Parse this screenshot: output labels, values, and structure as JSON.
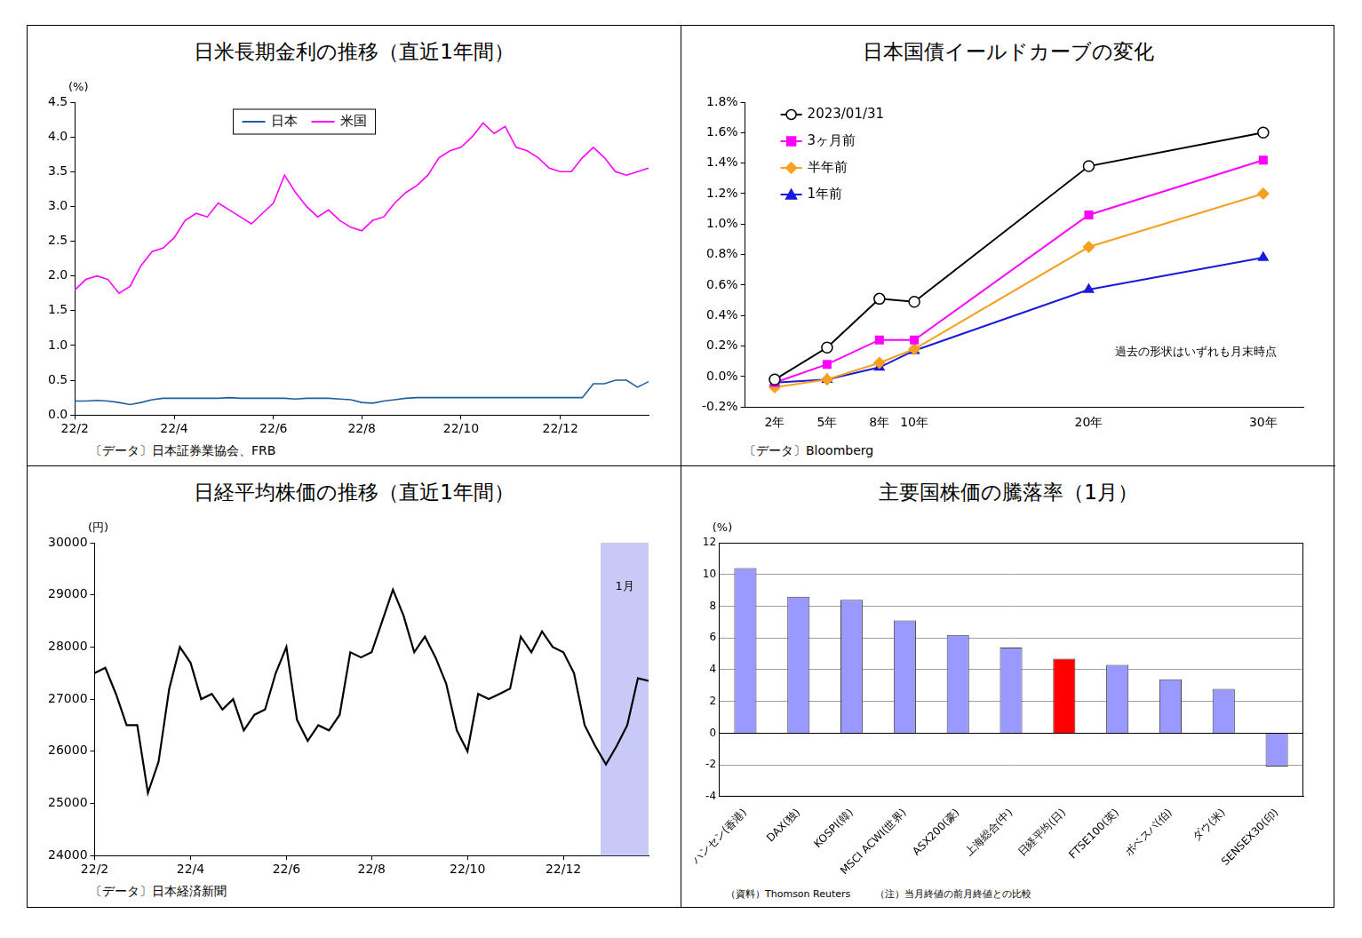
{
  "chart_data": [
    {
      "type": "line",
      "title": "日米長期金利の推移（直近1年間）",
      "ylabel": "(%)",
      "notes": [
        "〔データ〕日本証券業協会、FRB"
      ],
      "categories": [
        "22/2",
        null,
        null,
        null,
        null,
        null,
        null,
        null,
        null,
        "22/4",
        null,
        null,
        null,
        null,
        null,
        null,
        null,
        null,
        "22/6",
        null,
        null,
        null,
        null,
        null,
        null,
        null,
        "22/8",
        null,
        null,
        null,
        null,
        null,
        null,
        null,
        null,
        "22/10",
        null,
        null,
        null,
        null,
        null,
        null,
        null,
        null,
        "22/12",
        null,
        null,
        null,
        null,
        null,
        null,
        null,
        null
      ],
      "series": [
        {
          "name": "日本",
          "color": "#1f5fa0",
          "values": [
            0.2,
            0.2,
            0.21,
            0.2,
            0.18,
            0.15,
            0.18,
            0.22,
            0.24,
            0.24,
            0.24,
            0.24,
            0.24,
            0.24,
            0.25,
            0.24,
            0.24,
            0.24,
            0.24,
            0.24,
            0.23,
            0.24,
            0.24,
            0.24,
            0.23,
            0.22,
            0.18,
            0.17,
            0.2,
            0.22,
            0.24,
            0.25,
            0.25,
            0.25,
            0.25,
            0.25,
            0.25,
            0.25,
            0.25,
            0.25,
            0.25,
            0.25,
            0.25,
            0.25,
            0.25,
            0.25,
            0.25,
            0.45,
            0.45,
            0.5,
            0.5,
            0.4,
            0.48
          ]
        },
        {
          "name": "米国",
          "color": "#ff00ff",
          "values": [
            1.8,
            1.95,
            2.0,
            1.95,
            1.75,
            1.85,
            2.15,
            2.35,
            2.4,
            2.55,
            2.8,
            2.9,
            2.85,
            3.05,
            2.95,
            2.85,
            2.75,
            2.9,
            3.05,
            3.45,
            3.2,
            3.0,
            2.85,
            2.95,
            2.8,
            2.7,
            2.65,
            2.8,
            2.85,
            3.05,
            3.2,
            3.3,
            3.45,
            3.7,
            3.8,
            3.85,
            4.0,
            4.2,
            4.05,
            4.15,
            3.85,
            3.8,
            3.7,
            3.55,
            3.5,
            3.5,
            3.7,
            3.85,
            3.7,
            3.5,
            3.45,
            3.5,
            3.55
          ]
        }
      ],
      "ylim": [
        0,
        4.5
      ],
      "yticks": [
        {
          "value": 0,
          "label": "0.0"
        },
        0.5,
        {
          "value": 1,
          "label": "1.0"
        },
        1.5,
        {
          "value": 2,
          "label": "2.0"
        },
        2.5,
        {
          "value": 3,
          "label": "3.0"
        },
        3.5,
        {
          "value": 4,
          "label": "4.0"
        },
        4.5
      ],
      "grid": false,
      "legend": "upper center"
    },
    {
      "type": "line",
      "title": "日本国債イールドカーブの変化",
      "notes": [
        "〔データ〕Bloomberg"
      ],
      "annotations": [
        {
          "text": "過去の形状はいずれも月末時点"
        }
      ],
      "x": [
        2,
        5,
        8,
        10,
        20,
        30
      ],
      "xlim": [
        0.3,
        32.3
      ],
      "xticks": [
        {
          "value": 2,
          "label": "2年"
        },
        {
          "value": 5,
          "label": "5年"
        },
        {
          "value": 8,
          "label": "8年"
        },
        {
          "value": 10,
          "label": "10年"
        },
        {
          "value": 20,
          "label": "20年"
        },
        {
          "value": 30,
          "label": "30年"
        }
      ],
      "series": [
        {
          "name": "2023/01/31",
          "color": "#000000",
          "marker": "circle_open",
          "values": [
            -0.02,
            0.19,
            0.51,
            0.49,
            1.38,
            1.6
          ]
        },
        {
          "name": "3ヶ月前",
          "color": "#ff00ff",
          "marker": "square",
          "values": [
            -0.04,
            0.08,
            0.24,
            0.24,
            1.06,
            1.42
          ]
        },
        {
          "name": "半年前",
          "color": "#f5a020",
          "marker": "diamond",
          "values": [
            -0.07,
            -0.02,
            0.09,
            0.18,
            0.85,
            1.2
          ]
        },
        {
          "name": "1年前",
          "color": "#1a1adc",
          "marker": "triangle",
          "values": [
            -0.04,
            -0.02,
            0.06,
            0.17,
            0.57,
            0.78
          ]
        }
      ],
      "ylim": [
        -0.2,
        1.8
      ],
      "yticks": [
        {
          "value": -0.2,
          "label": "-0.2%"
        },
        {
          "value": 0,
          "label": "0.0%"
        },
        {
          "value": 0.2,
          "label": "0.2%"
        },
        {
          "value": 0.4,
          "label": "0.4%"
        },
        {
          "value": 0.6,
          "label": "0.6%"
        },
        {
          "value": 0.8,
          "label": "0.8%"
        },
        {
          "value": 1.0,
          "label": "1.0%"
        },
        {
          "value": 1.2,
          "label": "1.2%"
        },
        {
          "value": 1.4,
          "label": "1.4%"
        },
        {
          "value": 1.6,
          "label": "1.6%"
        },
        {
          "value": 1.8,
          "label": "1.8%"
        }
      ],
      "grid": false,
      "legend": "upper left"
    },
    {
      "type": "line",
      "title": "日経平均株価の推移（直近1年間）",
      "ylabel": "(円)",
      "notes": [
        "〔データ〕日本経済新聞"
      ],
      "annotations": [
        {
          "text": "1月",
          "from": 48,
          "to": 52
        }
      ],
      "categories": [
        "22/2",
        null,
        null,
        null,
        null,
        null,
        null,
        null,
        null,
        "22/4",
        null,
        null,
        null,
        null,
        null,
        null,
        null,
        null,
        "22/6",
        null,
        null,
        null,
        null,
        null,
        null,
        null,
        "22/8",
        null,
        null,
        null,
        null,
        null,
        null,
        null,
        null,
        "22/10",
        null,
        null,
        null,
        null,
        null,
        null,
        null,
        null,
        "22/12",
        null,
        null,
        null,
        null,
        null,
        null,
        null,
        null
      ],
      "color": "#000000",
      "values": [
        27500,
        27600,
        27100,
        26500,
        26500,
        25200,
        25800,
        27200,
        28000,
        27700,
        27000,
        27100,
        26800,
        27000,
        26400,
        26700,
        26800,
        27500,
        28000,
        26600,
        26200,
        26500,
        26400,
        26700,
        27900,
        27800,
        27900,
        28500,
        29100,
        28600,
        27900,
        28200,
        27800,
        27300,
        26400,
        26000,
        27100,
        27000,
        27100,
        27200,
        28200,
        27900,
        28300,
        28000,
        27900,
        27500,
        26500,
        26100,
        25750,
        26100,
        26500,
        27400,
        27350
      ],
      "ylim": [
        24000,
        30000
      ],
      "yticks": [
        24000,
        25000,
        26000,
        27000,
        28000,
        29000,
        30000
      ],
      "grid": false
    },
    {
      "type": "bar",
      "title": "主要国株価の騰落率（1月）",
      "ylabel": "(%)",
      "notes": [
        "（資料）Thomson Reuters",
        "（注）当月終値の前月終値との比較"
      ],
      "categories": [
        "ハンセン(香港)",
        "DAX(独)",
        "KOSPI(韓)",
        "MSCI ACWI(世界)",
        "ASX200(豪)",
        "上海総合(中)",
        "日経平均(日)",
        "FTSE100(英)",
        "ボベスパ(伯)",
        "ダウ(米)",
        "SENSEX30(印)"
      ],
      "values": [
        10.4,
        8.6,
        8.4,
        7.1,
        6.2,
        5.4,
        4.7,
        4.3,
        3.4,
        2.8,
        -2.1
      ],
      "colors": [
        "#9999ff",
        "#9999ff",
        "#9999ff",
        "#9999ff",
        "#9999ff",
        "#9999ff",
        "#ff0000",
        "#9999ff",
        "#9999ff",
        "#9999ff",
        "#9999ff"
      ],
      "ylim": [
        -4,
        12
      ],
      "yticks": [
        -4,
        -2,
        0,
        2,
        4,
        6,
        8,
        10,
        12
      ],
      "grid": true
    }
  ]
}
